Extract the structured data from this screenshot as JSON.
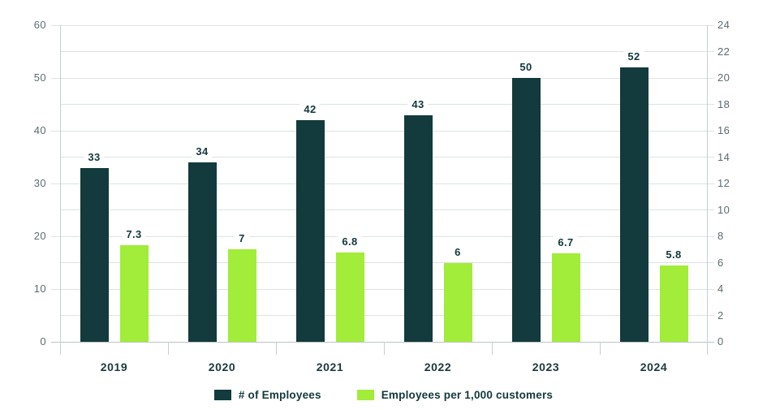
{
  "chart_data": {
    "type": "bar",
    "title": "",
    "categories": [
      "2019",
      "2020",
      "2021",
      "2022",
      "2023",
      "2024"
    ],
    "series": [
      {
        "name": "# of Employees",
        "axis": "left",
        "color": "#133a3c",
        "values": [
          33,
          34,
          42,
          43,
          50,
          52
        ],
        "data_labels": [
          "33",
          "34",
          "42",
          "43",
          "50",
          "52"
        ]
      },
      {
        "name": "Employees per 1,000 customers",
        "axis": "right",
        "color": "#a2ec3a",
        "values": [
          7.3,
          7,
          6.8,
          6,
          6.7,
          5.8
        ],
        "data_labels": [
          "7.3",
          "7",
          "6.8",
          "6",
          "6.7",
          "5.8"
        ]
      }
    ],
    "left_axis": {
      "min": 0,
      "max": 60,
      "label_step": 10,
      "grid_step": 5,
      "tick_labels": [
        "0",
        "10",
        "20",
        "30",
        "40",
        "50",
        "60"
      ]
    },
    "right_axis": {
      "min": 0,
      "max": 24,
      "label_step": 2,
      "tick_labels": [
        "0",
        "2",
        "4",
        "6",
        "8",
        "10",
        "12",
        "14",
        "16",
        "18",
        "20",
        "22",
        "24"
      ]
    },
    "grid": true,
    "legend_position": "bottom"
  },
  "colors": {
    "background": "#ffffff",
    "grid": "#dde2e4",
    "baseline": "#bcc5c7",
    "axis_line": "#c6d0d2",
    "axis_label": "#5e6c6f",
    "value_label": "#14383c",
    "category_label": "#1c393e"
  }
}
